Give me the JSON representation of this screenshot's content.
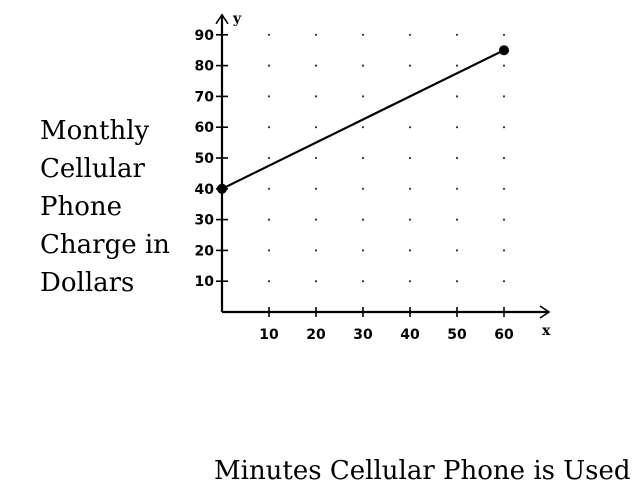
{
  "chart_data": {
    "type": "line",
    "ylabel_lines": [
      "Monthly",
      "Cellular",
      "Phone",
      "Charge in",
      "Dollars"
    ],
    "xlabel": "Minutes Cellular Phone is Used",
    "x_axis_name": "x",
    "y_axis_name": "y",
    "xlim": [
      0,
      60
    ],
    "ylim": [
      0,
      90
    ],
    "x_ticks": [
      10,
      20,
      30,
      40,
      50,
      60
    ],
    "y_ticks": [
      10,
      20,
      30,
      40,
      50,
      60,
      70,
      80,
      90
    ],
    "grid": "dotted",
    "series": [
      {
        "x": [
          0,
          60
        ],
        "y": [
          40,
          85
        ],
        "endpoints": "filled-dots"
      }
    ]
  }
}
